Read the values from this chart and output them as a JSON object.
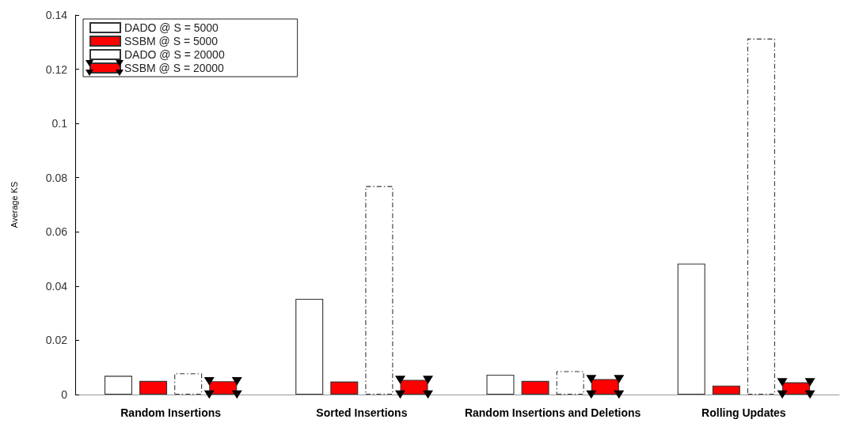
{
  "chart_data": {
    "type": "bar",
    "ylabel": "Average KS",
    "categories": [
      "Random Insertions",
      "Sorted Insertions",
      "Random Insertions and Deletions",
      "Rolling Updates"
    ],
    "series": [
      {
        "name": "DADO @ S = 5000",
        "color": "#ffffff",
        "values": [
          0.0069,
          0.0353,
          0.0073,
          0.0483
        ]
      },
      {
        "name": "SSBM @ S = 5000",
        "color": "#ff0000",
        "values": [
          0.005,
          0.0048,
          0.005,
          0.0033
        ]
      },
      {
        "name": "DADO @ S = 20000",
        "color": "#ffffff",
        "line_style": "dashed",
        "values": [
          0.0078,
          0.0769,
          0.0086,
          0.1313
        ]
      },
      {
        "name": "SSBM @ S = 20000",
        "color": "#ff0000",
        "marker": "triangle",
        "values": [
          0.0049,
          0.0054,
          0.0057,
          0.0045
        ]
      }
    ],
    "ylim": [
      0,
      0.14
    ],
    "yticks": [
      0,
      0.02,
      0.04,
      0.06,
      0.08,
      0.1,
      0.12,
      0.14
    ],
    "grid": false,
    "legend": "top left"
  }
}
